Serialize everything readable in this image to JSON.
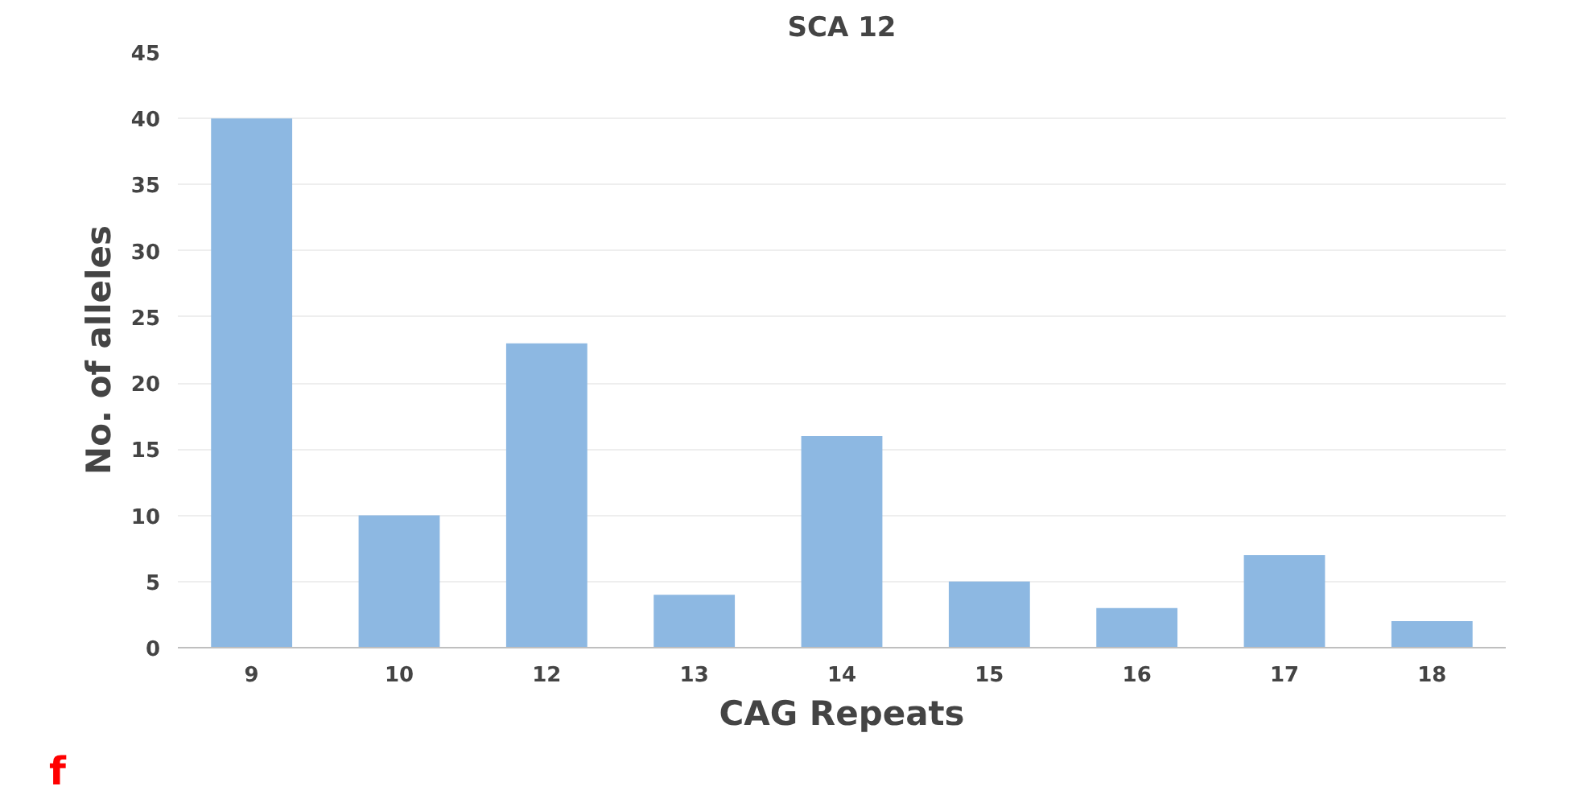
{
  "chart_data": {
    "type": "bar",
    "title": "SCA 12",
    "xlabel": "CAG Repeats",
    "ylabel": "No. of alleles",
    "categories": [
      "9",
      "10",
      "12",
      "13",
      "14",
      "15",
      "16",
      "17",
      "18"
    ],
    "values": [
      40,
      10,
      23,
      4,
      16,
      5,
      3,
      7,
      2
    ],
    "color": "#8db8e2",
    "ylim": [
      0,
      45
    ],
    "yticks": [
      0,
      5,
      10,
      15,
      20,
      25,
      30,
      35,
      40,
      45
    ],
    "grid": "y",
    "annotations": [
      "f"
    ]
  }
}
